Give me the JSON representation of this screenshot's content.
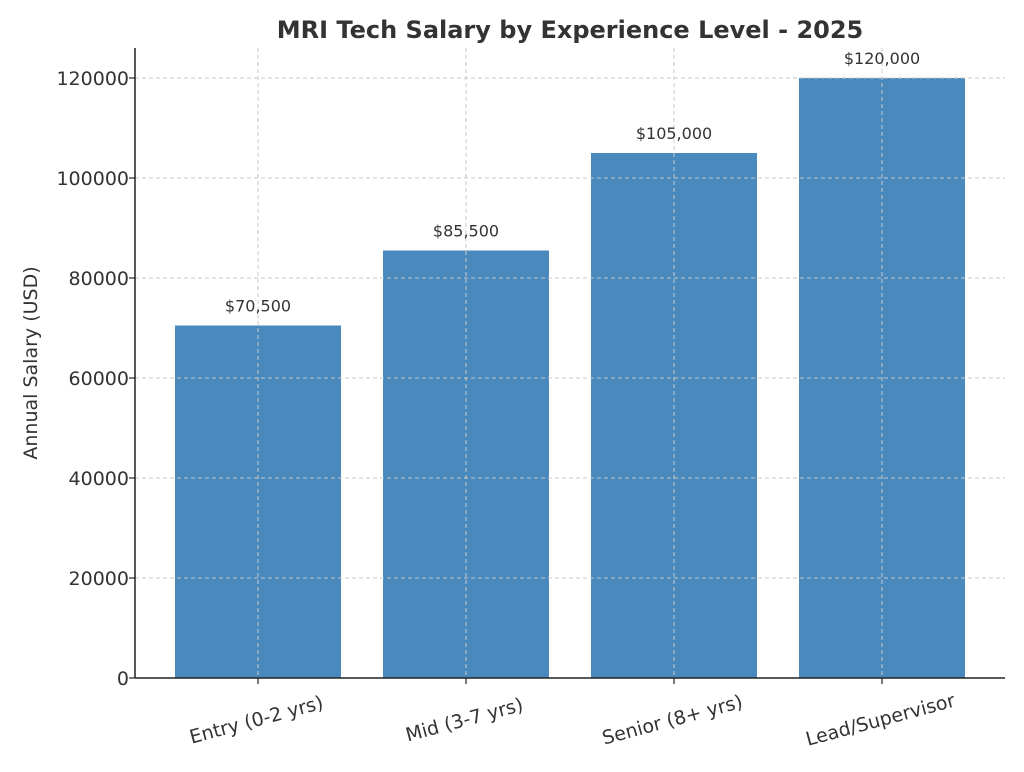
{
  "chart_data": {
    "type": "bar",
    "title": "MRI Tech Salary by Experience Level - 2025",
    "xlabel": "",
    "ylabel": "Annual Salary (USD)",
    "categories": [
      "Entry (0-2 yrs)",
      "Mid (3-7 yrs)",
      "Senior (8+ yrs)",
      "Lead/Supervisor"
    ],
    "values": [
      70500,
      85500,
      105000,
      120000
    ],
    "data_labels": [
      "$70,500",
      "$85,500",
      "$105,000",
      "$120,000"
    ],
    "ylim": [
      0,
      126000
    ],
    "yticks": [
      0,
      20000,
      40000,
      60000,
      80000,
      100000,
      120000
    ],
    "ytick_labels": [
      "0",
      "20000",
      "40000",
      "60000",
      "80000",
      "100000",
      "120000"
    ],
    "grid": true,
    "bar_color": "#4a89bd",
    "x_tick_rotation_deg": -15
  }
}
